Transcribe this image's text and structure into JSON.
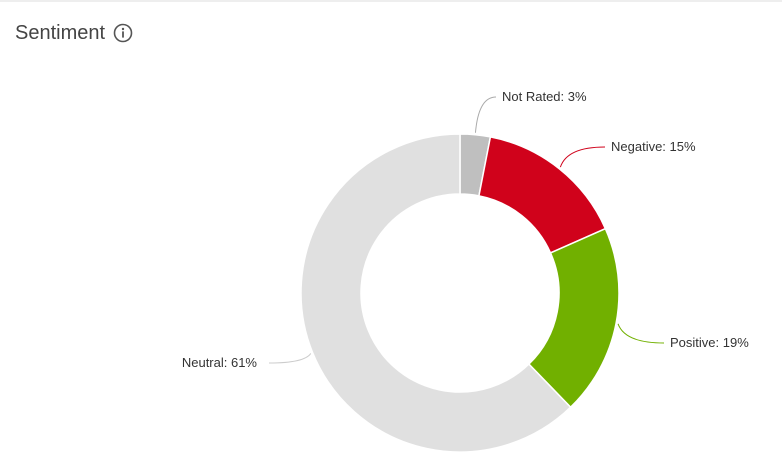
{
  "panel": {
    "title": "Sentiment",
    "info_icon": "info-circle-icon"
  },
  "chart_data": {
    "type": "pie",
    "variant": "donut",
    "categories": [
      "Not Rated",
      "Negative",
      "Positive",
      "Neutral"
    ],
    "values": [
      3,
      15,
      19,
      61
    ],
    "labels": [
      "Not Rated: 3%",
      "Negative: 15%",
      "Positive: 19%",
      "Neutral: 61%"
    ],
    "colors": [
      "#bfbfbf",
      "#d0021b",
      "#71b000",
      "#e0e0e0"
    ],
    "connector_colors": [
      "#aaaaaa",
      "#d0021b",
      "#71b000",
      "#cccccc"
    ]
  }
}
